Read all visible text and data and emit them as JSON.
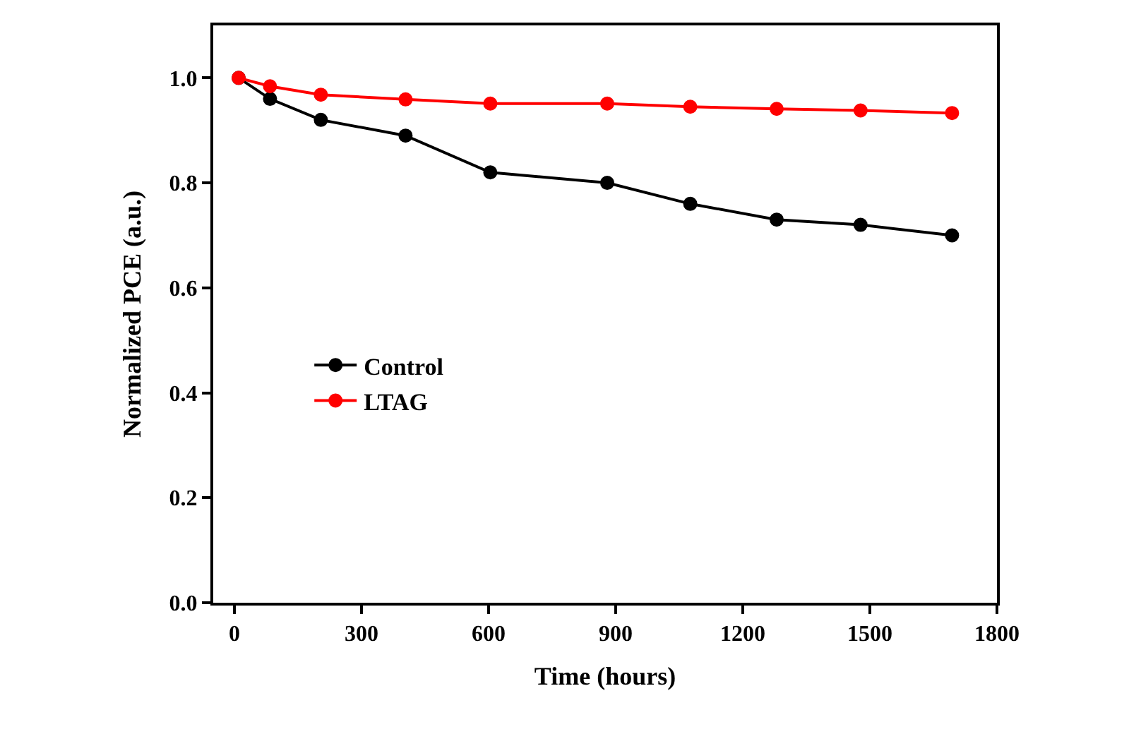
{
  "chart_data": {
    "type": "line",
    "xlabel": "Time (hours)",
    "ylabel": "Normalized PCE (a.u.)",
    "xlim": [
      -50,
      1800
    ],
    "xticks": [
      0,
      300,
      600,
      900,
      1200,
      1500,
      1800
    ],
    "ylim": [
      0,
      1.1
    ],
    "yticks": [
      {
        "value": 0,
        "label": "0.0"
      },
      0.2,
      0.4,
      0.6,
      0.8,
      {
        "value": 1,
        "label": "1.0"
      }
    ],
    "legend": "left",
    "marker": "circle",
    "line_style": "solid",
    "series": [
      {
        "name": "Control",
        "color": "#000000",
        "x": [
          10,
          84,
          204,
          404,
          604,
          880,
          1076,
          1280,
          1478,
          1694
        ],
        "values": [
          1.0,
          0.96,
          0.92,
          0.89,
          0.82,
          0.8,
          0.76,
          0.73,
          0.72,
          0.7
        ]
      },
      {
        "name": "LTAG",
        "color": "#ff0000",
        "x": [
          10,
          84,
          204,
          404,
          604,
          880,
          1076,
          1280,
          1478,
          1694
        ],
        "values": [
          1.0,
          0.984,
          0.968,
          0.959,
          0.951,
          0.951,
          0.945,
          0.941,
          0.938,
          0.933
        ]
      }
    ]
  }
}
